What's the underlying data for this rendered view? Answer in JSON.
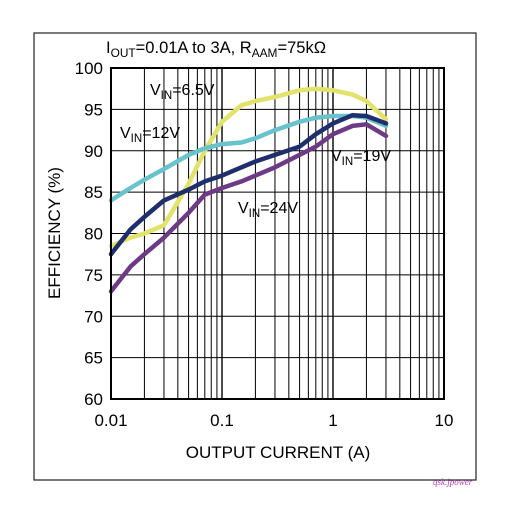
{
  "watermark": "qsk.jpower",
  "chart_data": {
    "type": "line",
    "title": {
      "i_main": "I",
      "i_sub": "OUT",
      "mid": "=0.01A to 3A, R",
      "r_sub": "AAM",
      "end": "=75kΩ"
    },
    "xlabel": "OUTPUT CURRENT (A)",
    "ylabel": "EFFICIENCY (%)",
    "x_scale": "log",
    "xlim": [
      0.01,
      10
    ],
    "ylim": [
      60,
      100
    ],
    "x_ticks": [
      "0.01",
      "0.1",
      "1",
      "10"
    ],
    "y_ticks": [
      "60",
      "65",
      "70",
      "75",
      "80",
      "85",
      "90",
      "95",
      "100"
    ],
    "grid": true,
    "series": [
      {
        "name": "VIN=6.5V",
        "label_main": "V",
        "label_sub": "IN",
        "label_val": "=6.5V",
        "color": "#e3e26a",
        "x": [
          0.01,
          0.015,
          0.02,
          0.03,
          0.05,
          0.07,
          0.1,
          0.15,
          0.2,
          0.3,
          0.5,
          0.7,
          1.0,
          1.5,
          2.0,
          3.0
        ],
        "y": [
          78.5,
          79.5,
          80.0,
          81.0,
          86.0,
          90.0,
          93.5,
          95.5,
          96.0,
          96.5,
          97.3,
          97.5,
          97.3,
          96.8,
          96.0,
          93.8
        ]
      },
      {
        "name": "VIN=12V",
        "label_main": "V",
        "label_sub": "IN",
        "label_val": "=12V",
        "color": "#68c3cc",
        "x": [
          0.01,
          0.015,
          0.02,
          0.03,
          0.05,
          0.07,
          0.1,
          0.15,
          0.2,
          0.3,
          0.5,
          0.7,
          1.0,
          1.5,
          2.0,
          3.0
        ],
        "y": [
          84.0,
          85.5,
          86.5,
          87.8,
          89.5,
          90.3,
          90.8,
          91.0,
          91.5,
          92.5,
          93.5,
          94.0,
          94.2,
          94.2,
          94.0,
          93.0
        ]
      },
      {
        "name": "VIN=19V",
        "label_main": "V",
        "label_sub": "IN",
        "label_val": "=19V",
        "color": "#1f2f6e",
        "x": [
          0.01,
          0.015,
          0.02,
          0.03,
          0.05,
          0.07,
          0.1,
          0.15,
          0.2,
          0.3,
          0.5,
          0.7,
          1.0,
          1.5,
          2.0,
          3.0
        ],
        "y": [
          77.5,
          80.5,
          82.0,
          84.0,
          85.3,
          86.3,
          87.0,
          88.0,
          88.7,
          89.5,
          90.5,
          92.0,
          93.3,
          94.3,
          94.2,
          93.3
        ]
      },
      {
        "name": "VIN=24V",
        "label_main": "V",
        "label_sub": "IN",
        "label_val": "=24V",
        "color": "#6e3a86",
        "x": [
          0.01,
          0.015,
          0.02,
          0.03,
          0.05,
          0.07,
          0.1,
          0.15,
          0.2,
          0.3,
          0.5,
          0.7,
          1.0,
          1.5,
          2.0,
          3.0
        ],
        "y": [
          73.0,
          76.0,
          77.5,
          79.5,
          82.5,
          84.7,
          85.5,
          86.3,
          87.0,
          88.0,
          89.5,
          90.5,
          92.0,
          93.0,
          93.2,
          91.8
        ]
      }
    ]
  }
}
